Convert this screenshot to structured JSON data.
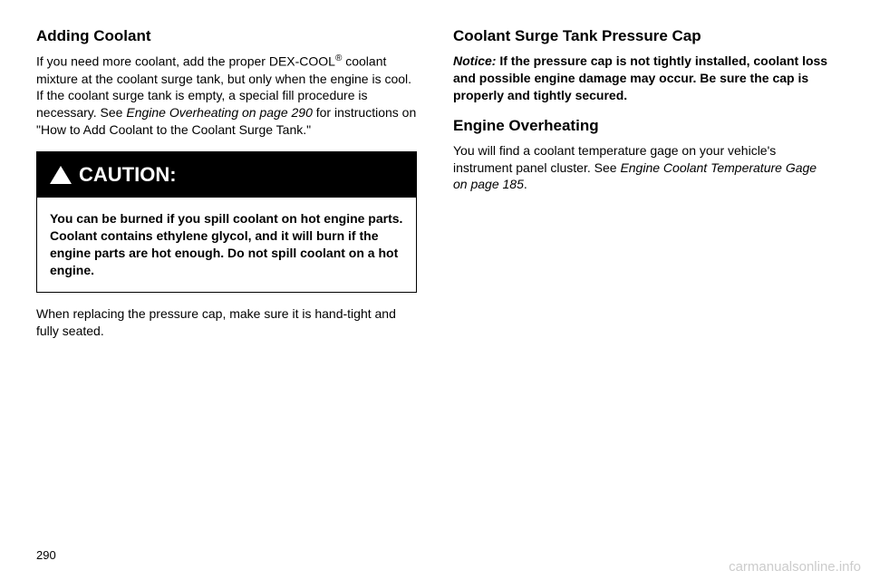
{
  "left": {
    "heading1": "Adding Coolant",
    "para1_a": "If you need more coolant, add the proper DEX-COOL",
    "para1_sup": "®",
    "para1_b": " coolant mixture at the coolant surge tank, but only when the engine is cool. If the coolant surge tank is empty, a special fill procedure is necessary. See ",
    "para1_c": "Engine Overheating on page 290",
    "para1_d": " for instructions on \"How to Add Coolant to the Coolant Surge Tank.\"",
    "caution_label": "CAUTION:",
    "caution_body": "You can be burned if you spill coolant on hot engine parts. Coolant contains ethylene glycol, and it will burn if the engine parts are hot enough. Do not spill coolant on a hot engine.",
    "para2": "When replacing the pressure cap, make sure it is hand-tight and fully seated."
  },
  "right": {
    "heading1": "Coolant Surge Tank Pressure Cap",
    "para1_a": "Notice:",
    "para1_b": " If the pressure cap is not tightly installed, coolant loss and possible engine damage may occur. Be sure the cap is properly and tightly secured.",
    "heading2": "Engine Overheating",
    "para2_a": "You will find a coolant temperature gage on your vehicle's instrument panel cluster. See ",
    "para2_b": "Engine Coolant Temperature Gage on page 185",
    "para2_c": "."
  },
  "page_number": "290",
  "watermark": "carmanualsonline.info"
}
